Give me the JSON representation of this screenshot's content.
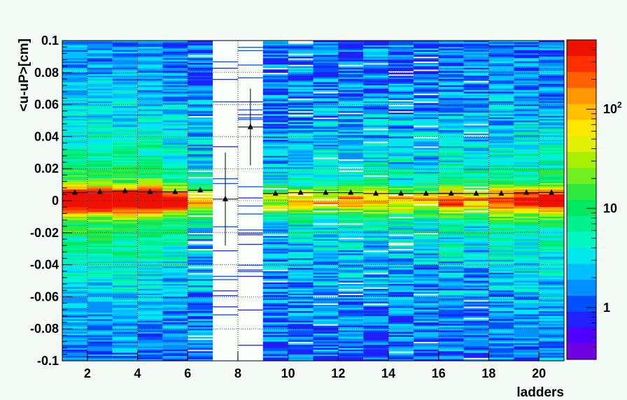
{
  "chart_data": {
    "type": "heatmap",
    "title": "",
    "xlabel": "ladders",
    "ylabel": "<u-uP>[cm]",
    "xlim": [
      1,
      21
    ],
    "ylim": [
      -0.1,
      0.1
    ],
    "x_ticks": [
      2,
      4,
      6,
      8,
      10,
      12,
      14,
      16,
      18,
      20
    ],
    "y_ticks": [
      -0.1,
      -0.08,
      -0.06,
      -0.04,
      -0.02,
      0,
      0.02,
      0.04,
      0.06,
      0.08,
      0.1
    ],
    "y_tick_labels": [
      "-0.1",
      "-0.08",
      "-0.06",
      "-0.04",
      "-0.02",
      "0",
      "0.02",
      "0.04",
      "0.06",
      "0.08",
      "0.1"
    ],
    "grid": true,
    "colorbar": {
      "scale": "log",
      "range": [
        0.3,
        500
      ],
      "tick_labels": [
        "1",
        "10",
        "10^2"
      ]
    },
    "ladder_intensity": [
      {
        "ladder": 1,
        "level": 1.0
      },
      {
        "ladder": 2,
        "level": 1.0
      },
      {
        "ladder": 3,
        "level": 1.0
      },
      {
        "ladder": 4,
        "level": 1.0
      },
      {
        "ladder": 5,
        "level": 0.8
      },
      {
        "ladder": 6,
        "level": 0.55
      },
      {
        "ladder": 7,
        "level": 0.0
      },
      {
        "ladder": 8,
        "level": 0.0
      },
      {
        "ladder": 9,
        "level": 0.45
      },
      {
        "ladder": 10,
        "level": 0.5
      },
      {
        "ladder": 11,
        "level": 0.55
      },
      {
        "ladder": 12,
        "level": 0.6
      },
      {
        "ladder": 13,
        "level": 0.6
      },
      {
        "ladder": 14,
        "level": 0.55
      },
      {
        "ladder": 15,
        "level": 0.55
      },
      {
        "ladder": 16,
        "level": 0.7
      },
      {
        "ladder": 17,
        "level": 0.6
      },
      {
        "ladder": 18,
        "level": 0.75
      },
      {
        "ladder": 19,
        "level": 0.8
      },
      {
        "ladder": 20,
        "level": 0.8
      }
    ],
    "profile_means": [
      {
        "x": 1.5,
        "y": 0.005,
        "err": 0.0005
      },
      {
        "x": 2.5,
        "y": 0.0055,
        "err": 0.0005
      },
      {
        "x": 3.5,
        "y": 0.006,
        "err": 0.0005
      },
      {
        "x": 4.5,
        "y": 0.0055,
        "err": 0.0005
      },
      {
        "x": 5.5,
        "y": 0.0055,
        "err": 0.0005
      },
      {
        "x": 6.5,
        "y": 0.0065,
        "err": 0.0005
      },
      {
        "x": 7.5,
        "y": 0.001,
        "err": 0.029
      },
      {
        "x": 8.5,
        "y": 0.046,
        "err": 0.024
      },
      {
        "x": 9.5,
        "y": 0.0045,
        "err": 0.0005
      },
      {
        "x": 10.5,
        "y": 0.005,
        "err": 0.0005
      },
      {
        "x": 11.5,
        "y": 0.005,
        "err": 0.0005
      },
      {
        "x": 12.5,
        "y": 0.005,
        "err": 0.0005
      },
      {
        "x": 13.5,
        "y": 0.0045,
        "err": 0.0005
      },
      {
        "x": 14.5,
        "y": 0.0045,
        "err": 0.0005
      },
      {
        "x": 15.5,
        "y": 0.0045,
        "err": 0.0005
      },
      {
        "x": 16.5,
        "y": 0.0045,
        "err": 0.0005
      },
      {
        "x": 17.5,
        "y": 0.0045,
        "err": 0.0005
      },
      {
        "x": 18.5,
        "y": 0.0045,
        "err": 0.0005
      },
      {
        "x": 19.5,
        "y": 0.005,
        "err": 0.0005
      },
      {
        "x": 20.5,
        "y": 0.005,
        "err": 0.0005
      }
    ]
  },
  "palette": [
    "#7000e0",
    "#5000ff",
    "#2020ff",
    "#0050ff",
    "#0090ff",
    "#00c0ff",
    "#00e8ee",
    "#00f8c0",
    "#00f090",
    "#00e860",
    "#30e840",
    "#70ee20",
    "#a8f000",
    "#e0f000",
    "#ffe800",
    "#ffc000",
    "#ff9800",
    "#ff6000",
    "#ff3000",
    "#ee1000"
  ]
}
